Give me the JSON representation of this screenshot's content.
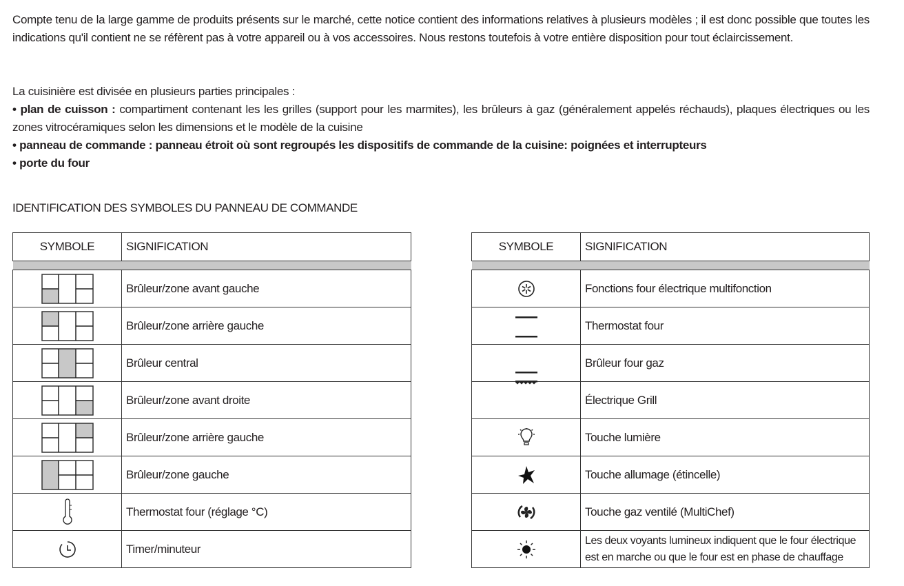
{
  "intro": "Compte tenu de la large gamme de produits présents sur le marché, cette notice contient des informations relatives à plusieurs modèles ; il est donc possible que toutes les indications qu'il contient ne se réfèrent pas à votre appareil ou à vos accessoires. Nous restons toutefois à votre entière disposition pour tout éclaircissement.",
  "parts": {
    "lead": "La cuisinière est divisée en plusieurs parties principales :",
    "items": [
      {
        "term": "• plan de cuisson :",
        "desc": " compartiment contenant les les grilles (support pour les marmites), les brûleurs à gaz (généralement appelés réchauds), plaques électriques ou les zones vitrocéramiques selon les dimensions et le modèle de la cuisine"
      },
      {
        "term": "• panneau de commande : panneau étroit où sont regroupés les dispositifs de commande de la cuisine: poignées et interrupteurs",
        "desc": ""
      },
      {
        "term": "• porte du four",
        "desc": ""
      }
    ]
  },
  "section_title": "IDENTIFICATION DES SYMBOLES DU PANNEAU DE COMMANDE",
  "headers": {
    "symbol": "SYMBOLE",
    "meaning": "SIGNIFICATION"
  },
  "left_rows": [
    {
      "icon": "burner-front-left-icon",
      "label": "Brûleur/zone avant gauche"
    },
    {
      "icon": "burner-rear-left-icon",
      "label": "Brûleur/zone arrière gauche"
    },
    {
      "icon": "burner-central-icon",
      "label": "Brûleur central"
    },
    {
      "icon": "burner-front-right-icon",
      "label": "Brûleur/zone avant droite"
    },
    {
      "icon": "burner-rear-right-icon",
      "label": "Brûleur/zone arrière gauche"
    },
    {
      "icon": "burner-left-icon",
      "label": "Brûleur/zone gauche"
    },
    {
      "icon": "thermometer-icon",
      "label": "Thermostat four (réglage °C)"
    },
    {
      "icon": "timer-icon",
      "label": "Timer/minuteur"
    }
  ],
  "right_rows": [
    {
      "icon": "multifunction-icon",
      "label": "Fonctions four électrique multifonction"
    },
    {
      "icon": "oven-thermostat-icon",
      "label": "Thermostat four"
    },
    {
      "icon": "gas-oven-burner-icon",
      "label": "Brûleur four gaz"
    },
    {
      "icon": "electric-grill-icon",
      "label": "Électrique Grill"
    },
    {
      "icon": "light-bulb-icon",
      "label": "Touche lumière"
    },
    {
      "icon": "spark-icon",
      "label": "Touche allumage (étincelle)"
    },
    {
      "icon": "fan-icon",
      "label": "Touche gaz ventilé (MultiChef)"
    },
    {
      "icon": "indicator-light-icon",
      "label": "Les deux voyants lumineux indiquent que le four électrique est en marche ou que le four est en phase de chauffage"
    }
  ],
  "colors": {
    "highlight": "#c8c8c8",
    "border": "#333333"
  }
}
